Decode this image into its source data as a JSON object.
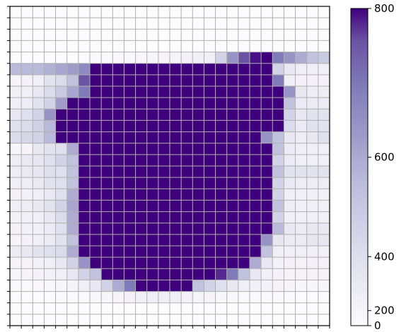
{
  "chart_data": {
    "type": "heatmap",
    "title": "",
    "xlabel": "",
    "ylabel": "",
    "n_rows": 28,
    "n_cols": 28,
    "grid": true,
    "grid_color": "#b0b0b0",
    "colormap": "Purples",
    "color_scale": "power (compressed toward the high end)",
    "vmin": 0,
    "vmax": 800,
    "legend": "colorbar right",
    "colorbar_ticks": [
      0,
      200,
      400,
      600,
      800
    ],
    "colorbar_tick_labels": [
      "0",
      "200",
      "400",
      "600",
      "800"
    ],
    "z": [
      [
        0,
        0,
        0,
        0,
        0,
        0,
        0,
        0,
        0,
        0,
        0,
        0,
        0,
        0,
        0,
        0,
        0,
        0,
        0,
        0,
        0,
        0,
        0,
        0,
        0,
        0,
        0,
        0
      ],
      [
        0,
        0,
        0,
        0,
        0,
        0,
        0,
        0,
        0,
        0,
        0,
        0,
        0,
        0,
        0,
        0,
        0,
        0,
        0,
        0,
        0,
        0,
        0,
        0,
        0,
        0,
        0,
        0
      ],
      [
        0,
        0,
        0,
        0,
        0,
        0,
        0,
        0,
        0,
        0,
        0,
        0,
        0,
        0,
        0,
        0,
        0,
        0,
        0,
        0,
        0,
        0,
        0,
        0,
        0,
        0,
        0,
        0
      ],
      [
        0,
        0,
        0,
        0,
        0,
        0,
        0,
        0,
        0,
        0,
        0,
        0,
        0,
        0,
        0,
        0,
        0,
        0,
        0,
        0,
        0,
        0,
        0,
        0,
        0,
        0,
        0,
        0
      ],
      [
        0,
        0,
        0,
        0,
        0,
        0,
        80,
        120,
        150,
        170,
        180,
        190,
        200,
        220,
        230,
        250,
        280,
        300,
        450,
        600,
        700,
        780,
        800,
        650,
        600,
        550,
        500,
        480
      ],
      [
        520,
        520,
        520,
        540,
        560,
        580,
        620,
        800,
        800,
        800,
        800,
        800,
        800,
        800,
        800,
        800,
        800,
        800,
        800,
        800,
        800,
        800,
        800,
        450,
        350,
        300,
        300,
        300
      ],
      [
        220,
        250,
        300,
        380,
        420,
        500,
        700,
        800,
        800,
        800,
        800,
        800,
        800,
        800,
        800,
        800,
        800,
        800,
        800,
        800,
        800,
        800,
        800,
        650,
        300,
        250,
        250,
        250
      ],
      [
        280,
        300,
        350,
        420,
        480,
        560,
        650,
        800,
        800,
        800,
        800,
        800,
        800,
        800,
        800,
        800,
        800,
        800,
        800,
        800,
        800,
        800,
        800,
        800,
        600,
        350,
        320,
        320
      ],
      [
        300,
        320,
        380,
        450,
        580,
        800,
        800,
        800,
        800,
        800,
        800,
        800,
        800,
        800,
        800,
        800,
        800,
        800,
        800,
        800,
        800,
        800,
        800,
        800,
        500,
        330,
        330,
        330
      ],
      [
        350,
        400,
        450,
        600,
        800,
        800,
        800,
        800,
        800,
        800,
        800,
        800,
        800,
        800,
        800,
        800,
        800,
        800,
        800,
        800,
        800,
        800,
        800,
        800,
        450,
        350,
        380,
        380
      ],
      [
        400,
        420,
        460,
        520,
        800,
        800,
        800,
        800,
        800,
        800,
        800,
        800,
        800,
        800,
        800,
        800,
        800,
        800,
        800,
        800,
        800,
        800,
        800,
        800,
        420,
        330,
        380,
        380
      ],
      [
        420,
        440,
        450,
        520,
        800,
        800,
        800,
        800,
        800,
        800,
        800,
        800,
        800,
        800,
        800,
        800,
        800,
        800,
        800,
        800,
        800,
        800,
        600,
        500,
        350,
        320,
        350,
        400
      ],
      [
        200,
        220,
        350,
        380,
        400,
        550,
        800,
        800,
        800,
        800,
        800,
        800,
        800,
        800,
        800,
        800,
        800,
        800,
        800,
        800,
        800,
        800,
        800,
        500,
        330,
        300,
        300,
        300
      ],
      [
        320,
        340,
        360,
        400,
        450,
        500,
        800,
        800,
        800,
        800,
        800,
        800,
        800,
        800,
        800,
        800,
        800,
        800,
        800,
        800,
        800,
        800,
        800,
        450,
        330,
        300,
        300,
        300
      ],
      [
        320,
        340,
        360,
        400,
        400,
        500,
        800,
        800,
        800,
        800,
        800,
        800,
        800,
        800,
        800,
        800,
        800,
        800,
        800,
        800,
        800,
        800,
        800,
        500,
        380,
        380,
        380,
        380
      ],
      [
        300,
        320,
        340,
        380,
        400,
        500,
        800,
        800,
        800,
        800,
        800,
        800,
        800,
        800,
        800,
        800,
        800,
        800,
        800,
        800,
        800,
        800,
        800,
        450,
        340,
        320,
        320,
        320
      ],
      [
        250,
        270,
        300,
        340,
        400,
        550,
        800,
        800,
        800,
        800,
        800,
        800,
        800,
        800,
        800,
        800,
        800,
        800,
        800,
        800,
        800,
        800,
        800,
        450,
        300,
        300,
        280,
        280
      ],
      [
        300,
        320,
        350,
        380,
        450,
        560,
        800,
        800,
        800,
        800,
        800,
        800,
        800,
        800,
        800,
        800,
        800,
        800,
        800,
        800,
        800,
        800,
        800,
        500,
        320,
        300,
        300,
        300
      ],
      [
        260,
        280,
        300,
        350,
        420,
        550,
        800,
        800,
        800,
        800,
        800,
        800,
        800,
        800,
        800,
        800,
        800,
        800,
        800,
        800,
        800,
        800,
        800,
        450,
        300,
        300,
        300,
        300
      ],
      [
        250,
        270,
        300,
        330,
        400,
        550,
        800,
        800,
        800,
        800,
        800,
        800,
        800,
        800,
        800,
        800,
        800,
        800,
        800,
        800,
        800,
        800,
        800,
        520,
        350,
        330,
        350,
        350
      ],
      [
        220,
        250,
        300,
        330,
        380,
        500,
        800,
        800,
        800,
        800,
        800,
        800,
        800,
        800,
        800,
        800,
        800,
        800,
        800,
        800,
        800,
        800,
        600,
        360,
        330,
        330,
        360,
        360
      ],
      [
        330,
        350,
        380,
        400,
        420,
        550,
        800,
        800,
        800,
        800,
        800,
        800,
        800,
        800,
        800,
        800,
        800,
        800,
        800,
        800,
        800,
        800,
        500,
        300,
        300,
        300,
        280,
        280
      ],
      [
        220,
        240,
        270,
        300,
        350,
        450,
        600,
        800,
        800,
        800,
        800,
        800,
        800,
        800,
        800,
        800,
        800,
        800,
        800,
        800,
        800,
        550,
        350,
        260,
        250,
        240,
        250,
        250
      ],
      [
        200,
        220,
        250,
        270,
        300,
        350,
        450,
        500,
        800,
        800,
        800,
        800,
        800,
        800,
        800,
        800,
        800,
        800,
        750,
        650,
        500,
        350,
        280,
        250,
        240,
        240,
        240,
        240
      ],
      [
        150,
        160,
        170,
        180,
        200,
        230,
        300,
        350,
        450,
        550,
        650,
        800,
        800,
        800,
        800,
        800,
        500,
        450,
        400,
        350,
        300,
        280,
        260,
        240,
        220,
        200,
        200,
        200
      ],
      [
        100,
        100,
        100,
        110,
        120,
        140,
        160,
        180,
        200,
        220,
        250,
        280,
        300,
        300,
        300,
        250,
        230,
        220,
        200,
        180,
        160,
        150,
        140,
        130,
        120,
        110,
        100,
        100
      ],
      [
        0,
        0,
        0,
        0,
        0,
        0,
        0,
        0,
        0,
        0,
        0,
        0,
        0,
        0,
        0,
        0,
        0,
        0,
        0,
        0,
        0,
        0,
        0,
        0,
        0,
        0,
        0,
        0
      ],
      [
        0,
        0,
        0,
        0,
        0,
        0,
        0,
        0,
        0,
        0,
        0,
        0,
        0,
        0,
        0,
        0,
        0,
        0,
        0,
        0,
        0,
        0,
        0,
        0,
        0,
        0,
        0,
        0
      ]
    ]
  }
}
